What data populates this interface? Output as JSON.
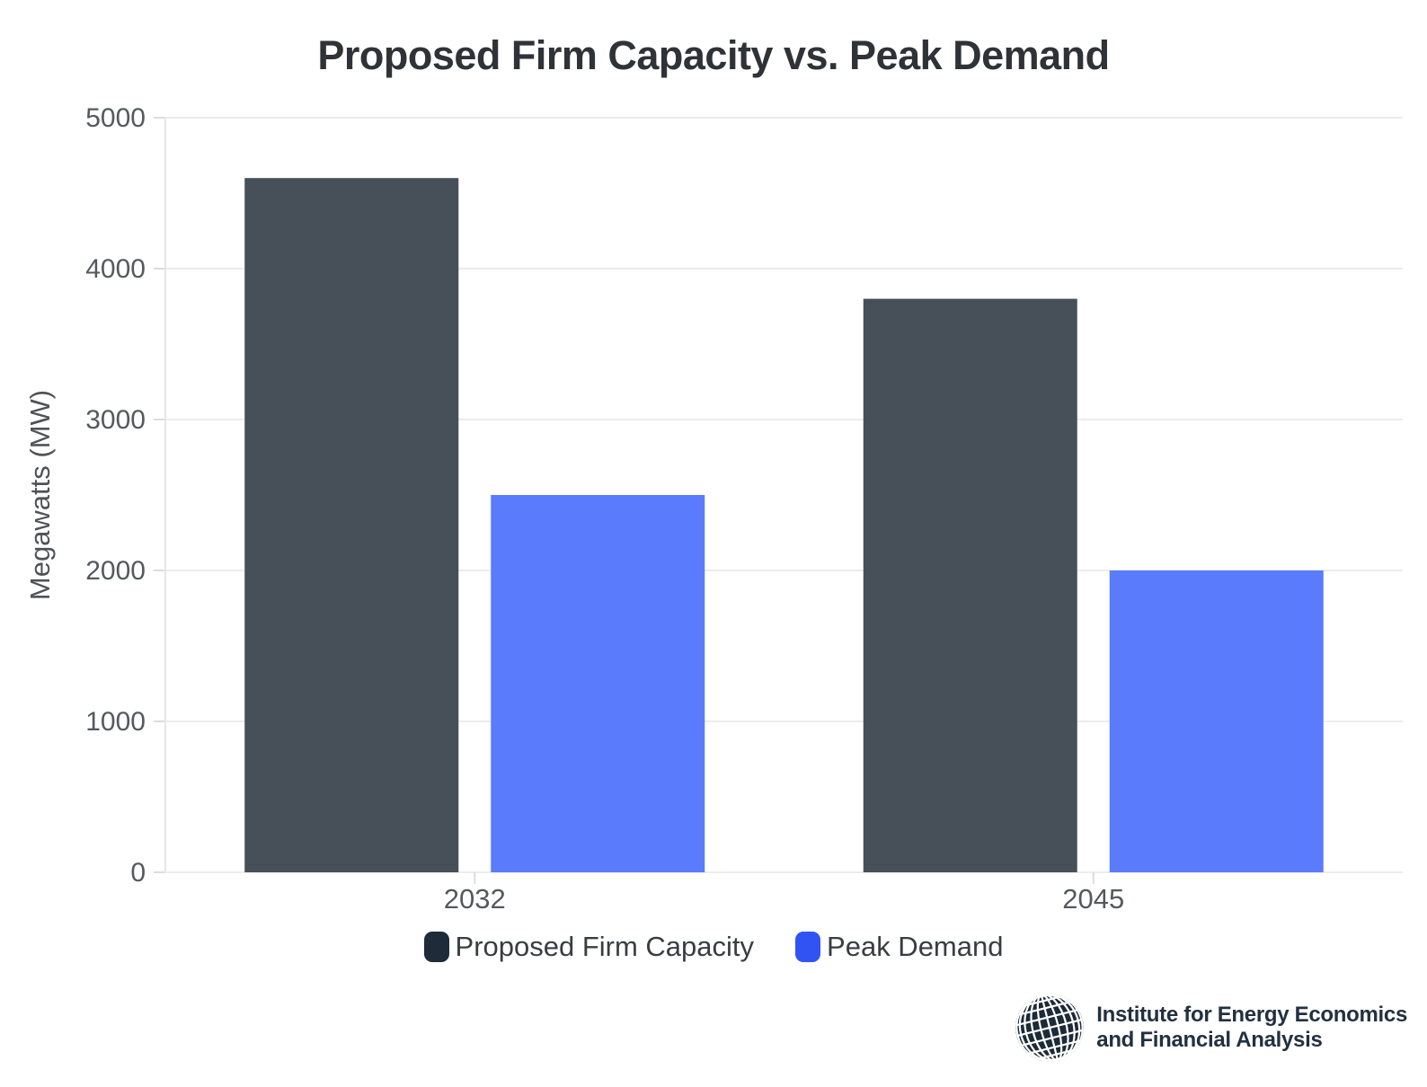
{
  "title": "Proposed Firm Capacity vs. Peak Demand",
  "chart_data": {
    "type": "bar",
    "categories": [
      "2032",
      "2045"
    ],
    "series": [
      {
        "name": "Proposed Firm Capacity",
        "values": [
          4600,
          3800
        ],
        "color": "#475059",
        "legend_color": "#1e2b39"
      },
      {
        "name": "Peak Demand",
        "values": [
          2500,
          2000
        ],
        "color": "#5a7bfc",
        "legend_color": "#3253f4"
      }
    ],
    "title": "Proposed Firm Capacity vs. Peak Demand",
    "xlabel": "",
    "ylabel": "Megawatts (MW)",
    "ylim": [
      0,
      5000
    ],
    "yticks": [
      0,
      1000,
      2000,
      3000,
      4000,
      5000
    ],
    "grid": "horizontal",
    "legend_position": "bottom",
    "style": {
      "axis_text_color": "#55595e",
      "grid_color": "#ececec",
      "domain_color": "#e7e7ea",
      "tick_color": "#dcdcdf"
    }
  },
  "footer": {
    "logo_icon": "ieefa-globe-icon",
    "logo_line1": "Institute for Energy Economics",
    "logo_line2": "and Financial Analysis"
  }
}
